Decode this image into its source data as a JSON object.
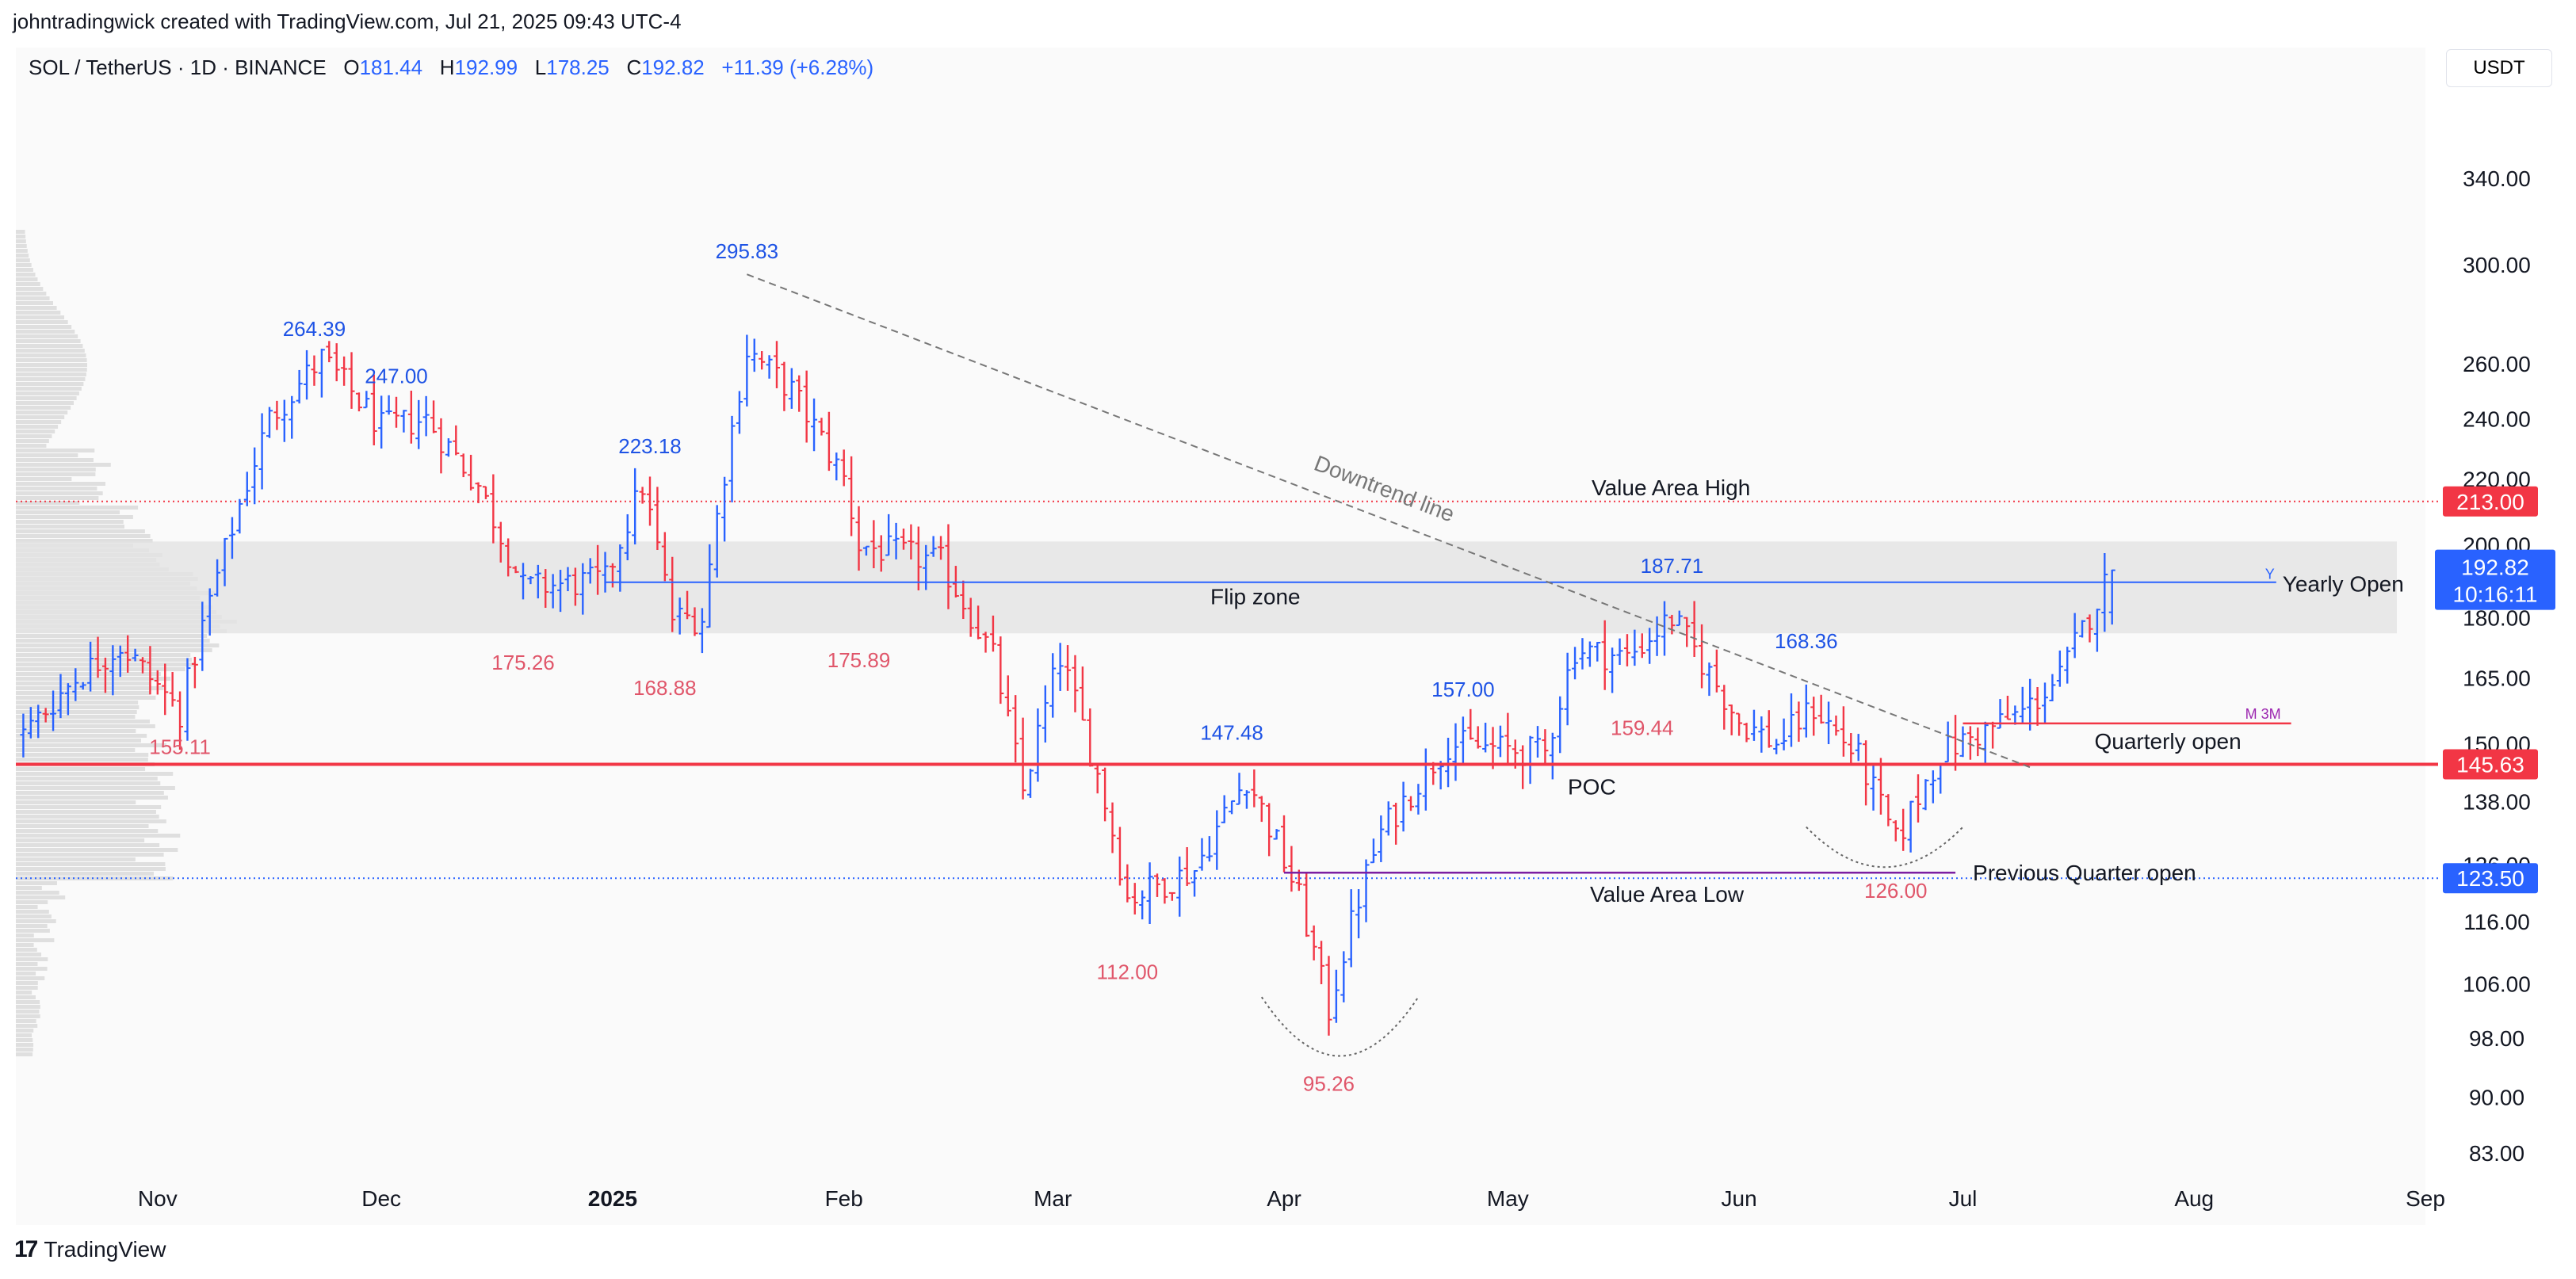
{
  "header": {
    "credit": "johntradingwick created with TradingView.com, Jul 21, 2025 09:43 UTC-4",
    "symbol": "SOL / TetherUS · 1D · BINANCE",
    "open_label": "O",
    "open": "181.44",
    "high_label": "H",
    "high": "192.99",
    "low_label": "L",
    "low": "178.25",
    "close_label": "C",
    "close": "192.82",
    "change": "+11.39 (+6.28%)",
    "currency": "USDT"
  },
  "footer": {
    "brand": "TradingView",
    "logo_icon": "tradingview-logo-icon"
  },
  "colors": {
    "up": "#2962ff",
    "down": "#f23645",
    "down_text": "#e0566a",
    "zone_fill": "#e4e4e4",
    "poc_line": "#f23645",
    "label_red": "#f23645",
    "label_blue": "#1e53e5",
    "magenta": "#9c27b0"
  },
  "chart_data": {
    "type": "ohlc",
    "scale": "log",
    "y_ticks": [
      83.0,
      90.0,
      98.0,
      106.0,
      116.0,
      126.0,
      138.0,
      150.0,
      165.0,
      180.0,
      200.0,
      220.0,
      240.0,
      260.0,
      300.0,
      340.0
    ],
    "y_tick_labels": [
      "83.00",
      "90.00",
      "98.00",
      "106.00",
      "116.00",
      "126.00",
      "138.00",
      "150.00",
      "165.00",
      "180.00",
      "200.00",
      "220.00",
      "240.00",
      "260.00",
      "300.00",
      "340.00"
    ],
    "x_labels": [
      {
        "date": "2024-11-01",
        "label": "Nov",
        "bold": false
      },
      {
        "date": "2024-12-01",
        "label": "Dec",
        "bold": false
      },
      {
        "date": "2025-01-01",
        "label": "2025",
        "bold": true
      },
      {
        "date": "2025-02-01",
        "label": "Feb",
        "bold": false
      },
      {
        "date": "2025-03-01",
        "label": "Mar",
        "bold": false
      },
      {
        "date": "2025-04-01",
        "label": "Apr",
        "bold": false
      },
      {
        "date": "2025-05-01",
        "label": "May",
        "bold": false
      },
      {
        "date": "2025-06-01",
        "label": "Jun",
        "bold": false
      },
      {
        "date": "2025-07-01",
        "label": "Jul",
        "bold": false
      },
      {
        "date": "2025-08-01",
        "label": "Aug",
        "bold": false
      },
      {
        "date": "2025-09-01",
        "label": "Sep",
        "bold": false
      }
    ],
    "x_range": [
      "2024-10-13",
      "2025-09-01"
    ],
    "y_range": [
      79,
      395
    ],
    "anchors": [
      [
        "2024-10-14",
        152
      ],
      [
        "2024-10-21",
        165
      ],
      [
        "2024-10-27",
        173
      ],
      [
        "2024-11-04",
        157
      ],
      [
        "2024-11-11",
        205
      ],
      [
        "2024-11-16",
        240
      ],
      [
        "2024-11-23",
        262
      ],
      [
        "2024-12-01",
        237
      ],
      [
        "2024-12-07",
        240
      ],
      [
        "2024-12-14",
        218
      ],
      [
        "2024-12-20",
        188
      ],
      [
        "2024-12-31",
        190
      ],
      [
        "2025-01-05",
        218
      ],
      [
        "2025-01-09",
        180
      ],
      [
        "2025-01-13",
        180
      ],
      [
        "2025-01-19",
        265
      ],
      [
        "2025-01-25",
        250
      ],
      [
        "2025-02-01",
        220
      ],
      [
        "2025-02-03",
        200
      ],
      [
        "2025-02-14",
        195
      ],
      [
        "2025-02-21",
        170
      ],
      [
        "2025-02-25",
        140
      ],
      [
        "2025-03-02",
        170
      ],
      [
        "2025-03-08",
        138
      ],
      [
        "2025-03-11",
        120
      ],
      [
        "2025-03-20",
        125
      ],
      [
        "2025-03-27",
        143
      ],
      [
        "2025-04-03",
        120
      ],
      [
        "2025-04-07",
        102
      ],
      [
        "2025-04-11",
        120
      ],
      [
        "2025-04-14",
        132
      ],
      [
        "2025-04-23",
        150
      ],
      [
        "2025-05-06",
        148
      ],
      [
        "2025-05-10",
        172
      ],
      [
        "2025-05-17",
        170
      ],
      [
        "2025-05-23",
        180
      ],
      [
        "2025-06-01",
        155
      ],
      [
        "2025-06-06",
        150
      ],
      [
        "2025-06-11",
        158
      ],
      [
        "2025-06-17",
        147
      ],
      [
        "2025-06-22",
        130
      ],
      [
        "2025-06-28",
        148
      ],
      [
        "2025-07-03",
        152
      ],
      [
        "2025-07-09",
        157
      ],
      [
        "2025-07-14",
        165
      ],
      [
        "2025-07-21",
        192.8
      ]
    ],
    "price_labels": [
      {
        "date": "2024-11-22",
        "value": 264.39,
        "text": "264.39",
        "kind": "high"
      },
      {
        "date": "2024-12-03",
        "value": 247.0,
        "text": "247.00",
        "kind": "high"
      },
      {
        "date": "2025-01-06",
        "value": 223.18,
        "text": "223.18",
        "kind": "high"
      },
      {
        "date": "2025-01-19",
        "value": 295.83,
        "text": "295.83",
        "kind": "high"
      },
      {
        "date": "2025-03-25",
        "value": 147.48,
        "text": "147.48",
        "kind": "high"
      },
      {
        "date": "2025-04-25",
        "value": 157.0,
        "text": "157.00",
        "kind": "high"
      },
      {
        "date": "2025-05-23",
        "value": 187.71,
        "text": "187.71",
        "kind": "high"
      },
      {
        "date": "2025-06-10",
        "value": 168.36,
        "text": "168.36",
        "kind": "high"
      },
      {
        "date": "2024-11-04",
        "value": 155.11,
        "text": "155.11",
        "kind": "low"
      },
      {
        "date": "2024-12-20",
        "value": 175.26,
        "text": "175.26",
        "kind": "low"
      },
      {
        "date": "2025-01-08",
        "value": 168.88,
        "text": "168.88",
        "kind": "low"
      },
      {
        "date": "2025-02-03",
        "value": 175.89,
        "text": "175.89",
        "kind": "low"
      },
      {
        "date": "2025-03-11",
        "value": 112.0,
        "text": "112.00",
        "kind": "low"
      },
      {
        "date": "2025-04-07",
        "value": 95.26,
        "text": "95.26",
        "kind": "low"
      },
      {
        "date": "2025-05-19",
        "value": 159.44,
        "text": "159.44",
        "kind": "low"
      },
      {
        "date": "2025-06-22",
        "value": 126.0,
        "text": "126.00",
        "kind": "low"
      }
    ],
    "levels": [
      {
        "name": "Value Area High",
        "value": 213.0,
        "style": "dotted-red",
        "axis_label": "213.00"
      },
      {
        "name": "POC",
        "value": 145.63,
        "style": "solid-red",
        "axis_label": "145.63"
      },
      {
        "name": "Value Area Low",
        "value": 123.5,
        "style": "dotted-blue",
        "axis_label": "123.50"
      }
    ],
    "zone": {
      "name": "Flip zone",
      "low": 176,
      "high": 201
    },
    "yearly_open": {
      "name": "Yearly Open",
      "value": 189.5,
      "start": "2025-01-01",
      "end": "2025-08-12",
      "marker": "Y"
    },
    "quarterly_open": {
      "name": "Quarterly open",
      "value": 154.5,
      "start": "2025-07-01",
      "end": "2025-08-14",
      "marker": "M  3M"
    },
    "previous_quarter_open": {
      "name": "Previous Quarter open",
      "value": 124.5,
      "start": "2025-04-01",
      "end": "2025-06-30"
    },
    "trendline": {
      "name": "Downtrend line",
      "from": {
        "date": "2025-01-19",
        "value": 295.83
      },
      "to": {
        "date": "2025-07-10",
        "value": 145
      }
    },
    "arcs": [
      {
        "from": {
          "date": "2025-03-29",
          "value": 104
        },
        "to": {
          "date": "2025-04-19",
          "value": 104
        },
        "bottom": 95.5
      },
      {
        "from": {
          "date": "2025-06-10",
          "value": 133
        },
        "to": {
          "date": "2025-07-01",
          "value": 133
        },
        "bottom": 125.5
      }
    ],
    "current_price": {
      "value": "192.82",
      "countdown": "10:16:11"
    }
  }
}
